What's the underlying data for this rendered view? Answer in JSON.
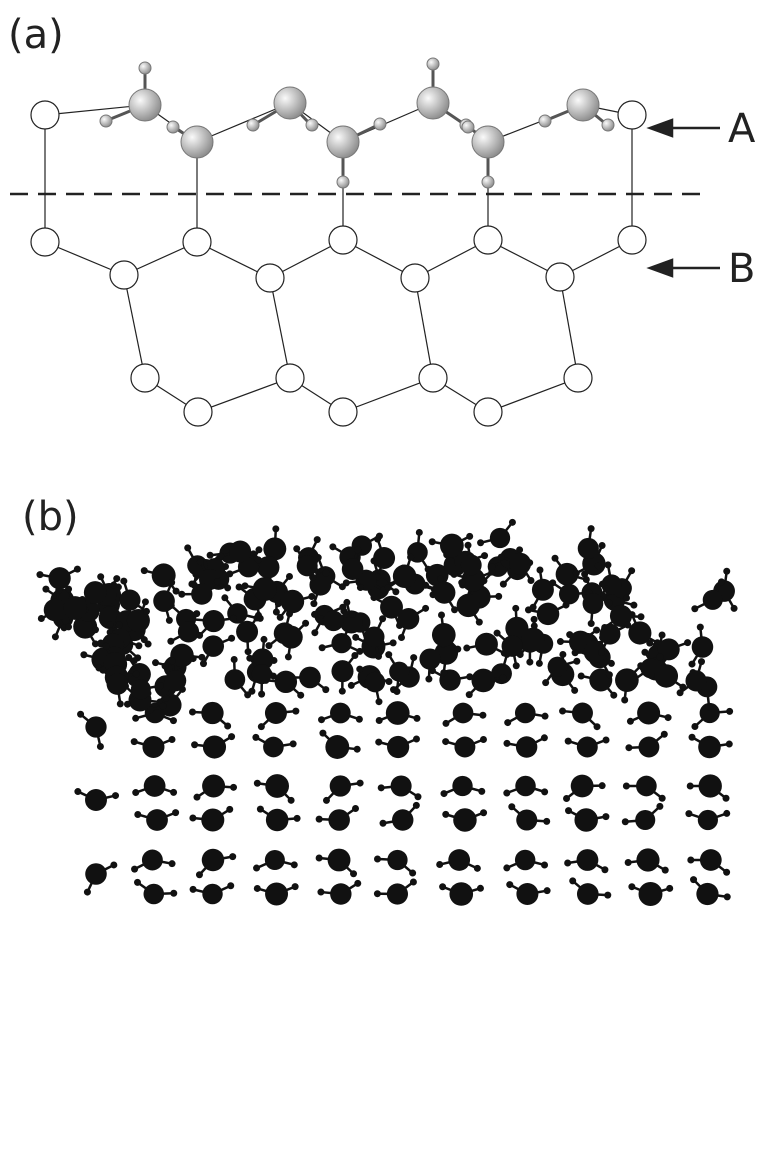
{
  "panels": [
    {
      "label": "(a)",
      "markers": [
        {
          "label": "A"
        },
        {
          "label": "B"
        }
      ]
    },
    {
      "label": "(b)"
    }
  ]
}
